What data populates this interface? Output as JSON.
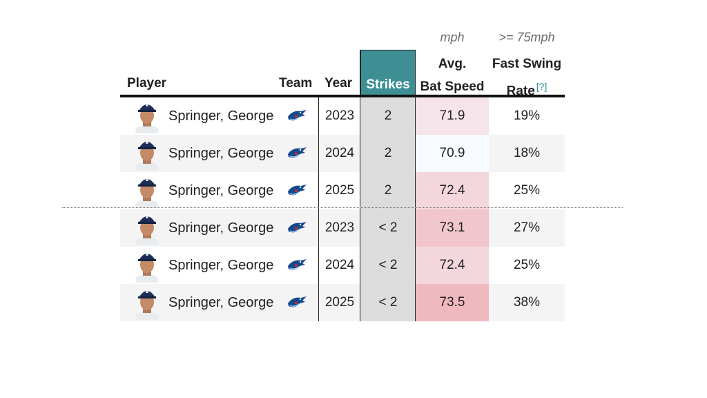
{
  "colors": {
    "strikes_header_bg": "#3d8f94",
    "strikes_col_bg": "#dcdcdc",
    "heat_low": "#f7fbff",
    "heat_high": "#f0b9c0"
  },
  "header": {
    "player": "Player",
    "team": "Team",
    "year": "Year",
    "strikes": "Strikes",
    "speed_unit": "mph",
    "speed_line1": "Avg.",
    "speed_line2": "Bat Speed",
    "rate_unit": ">= 75mph",
    "rate_line1": "Fast Swing",
    "rate_line2": "Rate",
    "rate_help": "[?]"
  },
  "rows": [
    {
      "player": "Springer, George",
      "team_icon": "blue-jays-logo-icon",
      "year": "2023",
      "strikes": "2",
      "speed": "71.9",
      "rate": "19%",
      "heat": 0.35
    },
    {
      "player": "Springer, George",
      "team_icon": "blue-jays-logo-icon",
      "year": "2024",
      "strikes": "2",
      "speed": "70.9",
      "rate": "18%",
      "heat": 0.0
    },
    {
      "player": "Springer, George",
      "team_icon": "blue-jays-logo-icon",
      "year": "2025",
      "strikes": "2",
      "speed": "72.4",
      "rate": "25%",
      "heat": 0.55
    },
    {
      "player": "Springer, George",
      "team_icon": "blue-jays-logo-icon",
      "year": "2023",
      "strikes": "< 2",
      "speed": "73.1",
      "rate": "27%",
      "heat": 0.8
    },
    {
      "player": "Springer, George",
      "team_icon": "blue-jays-logo-icon",
      "year": "2024",
      "strikes": "< 2",
      "speed": "72.4",
      "rate": "25%",
      "heat": 0.55
    },
    {
      "player": "Springer, George",
      "team_icon": "blue-jays-logo-icon",
      "year": "2025",
      "strikes": "< 2",
      "speed": "73.5",
      "rate": "38%",
      "heat": 1.0
    }
  ]
}
